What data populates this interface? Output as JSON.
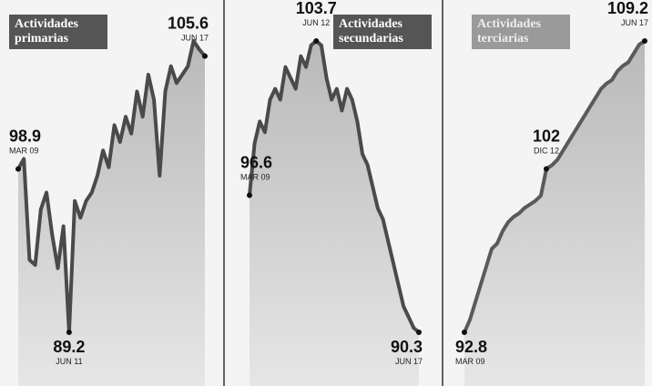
{
  "chart_data": [
    {
      "type": "line",
      "title": "Actividades primarias",
      "color": "#4a4a4a",
      "categories": [
        "MAR 09",
        null,
        null,
        null,
        null,
        null,
        null,
        null,
        null,
        "JUN 11",
        null,
        null,
        null,
        null,
        null,
        null,
        null,
        null,
        null,
        null,
        null,
        null,
        null,
        null,
        null,
        null,
        null,
        null,
        null,
        null,
        null,
        null,
        null,
        "JUN 17"
      ],
      "values": [
        98.9,
        99.5,
        93.5,
        93.2,
        96.5,
        97.5,
        95.0,
        93.0,
        95.5,
        89.2,
        97.0,
        96.0,
        97.0,
        97.5,
        98.5,
        100.0,
        99.0,
        101.5,
        100.5,
        102.0,
        101.0,
        103.5,
        102.0,
        104.5,
        103.0,
        98.5,
        103.5,
        105.0,
        104.0,
        104.5,
        105.0,
        106.5,
        106.0,
        105.6
      ]
    },
    {
      "type": "line",
      "title": "Actividades secundarias",
      "color": "#4a4a4a",
      "categories": [
        "MAR 09",
        null,
        null,
        null,
        null,
        null,
        null,
        null,
        null,
        null,
        null,
        null,
        null,
        "JUN 12",
        null,
        null,
        null,
        null,
        null,
        null,
        null,
        null,
        null,
        null,
        null,
        null,
        null,
        null,
        null,
        null,
        null,
        null,
        null,
        "JUN 17"
      ],
      "values": [
        96.6,
        99.0,
        100.0,
        99.5,
        101.0,
        101.5,
        101.0,
        102.5,
        102.0,
        101.5,
        103.0,
        102.5,
        103.5,
        103.7,
        103.5,
        102.0,
        101.0,
        101.5,
        100.5,
        101.5,
        101.0,
        100.0,
        98.5,
        98.0,
        97.0,
        96.0,
        95.5,
        94.5,
        93.5,
        92.5,
        91.5,
        91.0,
        90.5,
        90.3
      ]
    },
    {
      "type": "line",
      "title": "Actividades terciarias",
      "color": "#5a5a5a",
      "categories": [
        "MAR 09",
        null,
        null,
        null,
        null,
        null,
        null,
        null,
        null,
        null,
        null,
        null,
        null,
        null,
        null,
        "DIC 12",
        null,
        null,
        null,
        null,
        null,
        null,
        null,
        null,
        null,
        null,
        null,
        null,
        null,
        null,
        null,
        null,
        null,
        "JUN 17"
      ],
      "values": [
        92.8,
        93.5,
        94.5,
        95.5,
        96.5,
        97.5,
        97.8,
        98.5,
        99.0,
        99.3,
        99.5,
        99.8,
        100.0,
        100.2,
        100.5,
        102.0,
        102.2,
        102.5,
        103.0,
        103.5,
        104.0,
        104.5,
        105.0,
        105.5,
        106.0,
        106.5,
        106.8,
        107.0,
        107.5,
        107.8,
        108.0,
        108.5,
        109.0,
        109.2
      ]
    }
  ]
}
